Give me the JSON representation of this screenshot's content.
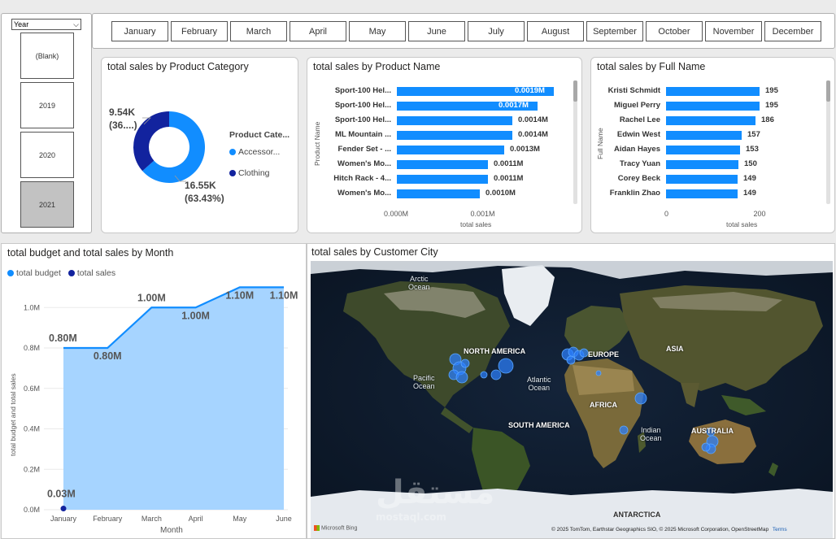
{
  "slicers": {
    "year": {
      "dropdown_label": "Year",
      "items": [
        "(Blank)",
        "2019",
        "2020",
        "2021"
      ],
      "selected": "2021"
    },
    "month": {
      "items": [
        "January",
        "February",
        "March",
        "April",
        "May",
        "June",
        "July",
        "August",
        "September",
        "October",
        "November",
        "December"
      ]
    }
  },
  "colors": {
    "accent": "#118dff",
    "dark_series": "#12239e",
    "area_fill": "#a6d4ff",
    "selected_tile": "#c2c2c2"
  },
  "map": {
    "title": "total sales by Customer City",
    "labels": {
      "arctic": "Arctic\nOcean",
      "north_america": "NORTH AMERICA",
      "europe": "EUROPE",
      "asia": "ASIA",
      "pacific": "Pacific\nOcean",
      "atlantic": "Atlantic\nOcean",
      "africa": "AFRICA",
      "south_america": "SOUTH AMERICA",
      "indian": "Indian\nOcean",
      "australia": "AUSTRALIA",
      "antarctica": "ANTARCTICA"
    },
    "credit": "© 2025 TomTom, Earthstar Geographics SIO, © 2025 Microsoft Corporation, OpenStreetMap",
    "terms": "Terms",
    "bing": "Microsoft Bing",
    "watermark": "مستقل",
    "watermark_sub": "mostaql.com"
  },
  "chart_data": [
    {
      "id": "category",
      "type": "pie",
      "title": "total sales by Product Category",
      "legend_title": "Product Cate...",
      "categories": [
        "Accessor...",
        "Clothing"
      ],
      "values": [
        16550,
        9540
      ],
      "data_labels": [
        {
          "value": "16.55K",
          "pct": "(63.43%)"
        },
        {
          "value": "9.54K",
          "pct": "(36....)"
        }
      ],
      "colors": [
        "#118dff",
        "#12239e"
      ]
    },
    {
      "id": "product",
      "type": "bar",
      "title": "total sales by Product Name",
      "ylabel": "Product Name",
      "xlabel": "total sales",
      "categories": [
        "Sport-100 Hel...",
        "Sport-100 Hel...",
        "Sport-100 Hel...",
        "ML Mountain ...",
        "Fender Set - ...",
        "Women's Mo...",
        "Hitch Rack - 4...",
        "Women's Mo..."
      ],
      "values": [
        0.0019,
        0.0017,
        0.0014,
        0.0014,
        0.0013,
        0.0011,
        0.0011,
        0.001
      ],
      "value_labels": [
        "0.0019M",
        "0.0017M",
        "0.0014M",
        "0.0014M",
        "0.0013M",
        "0.0011M",
        "0.0011M",
        "0.0010M"
      ],
      "x_ticks": [
        "0.000M",
        "0.001M"
      ],
      "x_tick_values": [
        0,
        0.001
      ],
      "xlim": [
        0,
        0.002
      ]
    },
    {
      "id": "fullname",
      "type": "bar",
      "title": "total sales by Full Name",
      "ylabel": "Full Name",
      "xlabel": "total sales",
      "categories": [
        "Kristi Schmidt",
        "Miguel Perry",
        "Rachel Lee",
        "Edwin West",
        "Aidan Hayes",
        "Tracy Yuan",
        "Corey Beck",
        "Franklin Zhao"
      ],
      "values": [
        195,
        195,
        186,
        157,
        153,
        150,
        149,
        149
      ],
      "x_ticks": [
        "0",
        "200"
      ],
      "x_tick_values": [
        0,
        200
      ],
      "xlim": [
        0,
        206
      ]
    },
    {
      "id": "month",
      "type": "area",
      "title": "total budget and total sales by Month",
      "xlabel": "Month",
      "ylabel": "total budget and total sales",
      "categories": [
        "January",
        "February",
        "March",
        "April",
        "May",
        "June"
      ],
      "series": [
        {
          "name": "total budget",
          "values": [
            0.8,
            0.8,
            1.0,
            1.0,
            1.1,
            1.1
          ],
          "labels": [
            "0.80M",
            "0.80M",
            "1.00M",
            "1.00M",
            "1.10M",
            "1.10M"
          ],
          "color": "#118dff"
        },
        {
          "name": "total sales",
          "values": [
            0.03,
            null,
            null,
            null,
            null,
            null
          ],
          "labels": [
            "0.03M"
          ],
          "color": "#12239e"
        }
      ],
      "y_ticks": [
        "0.0M",
        "0.2M",
        "0.4M",
        "0.6M",
        "0.8M",
        "1.0M"
      ],
      "y_tick_values": [
        0,
        0.2,
        0.4,
        0.6,
        0.8,
        1.0
      ],
      "ylim": [
        0,
        1.2
      ]
    }
  ]
}
